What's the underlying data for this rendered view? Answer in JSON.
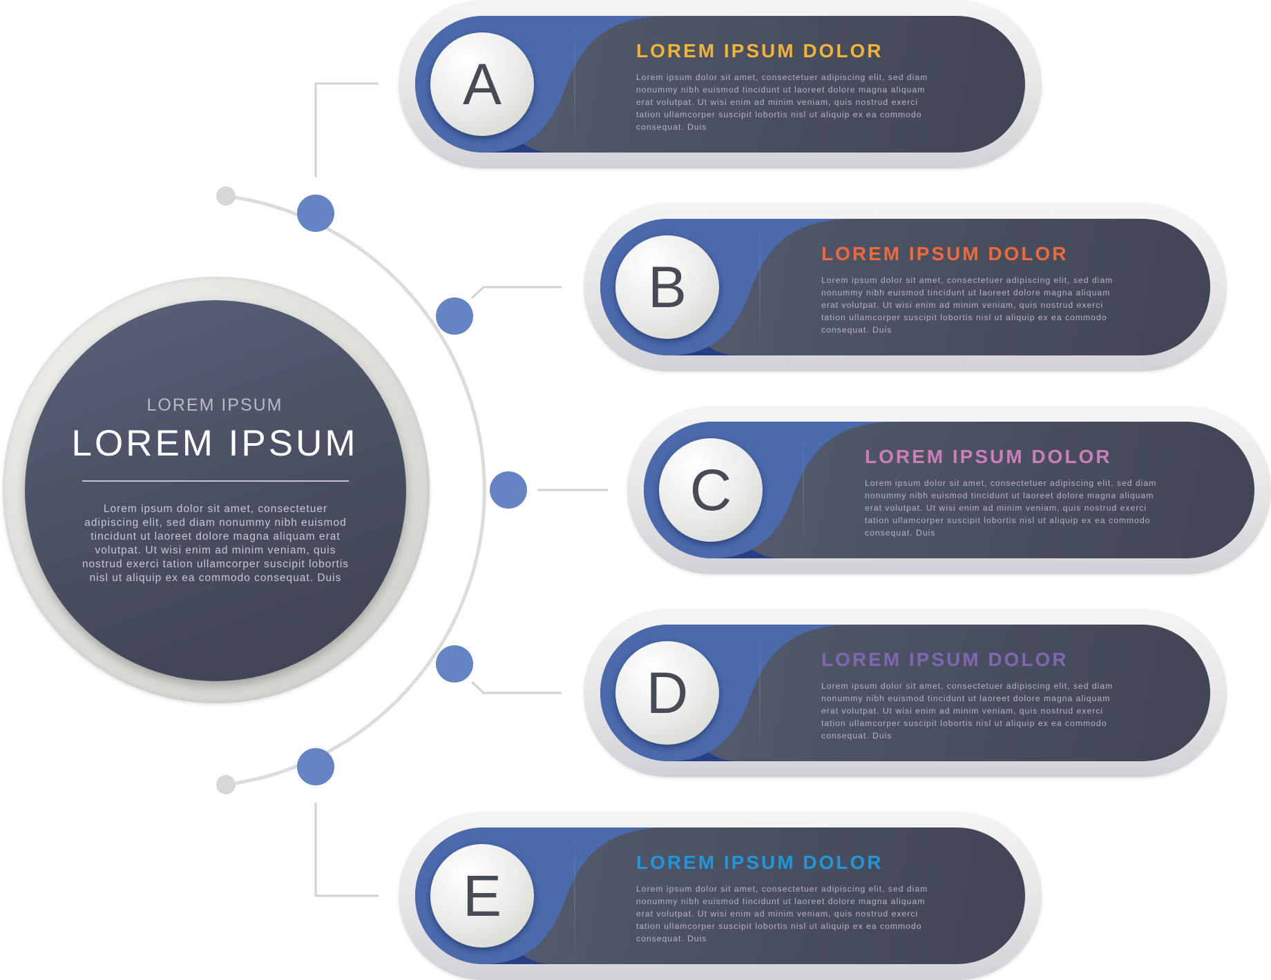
{
  "hub": {
    "subtitle": "LOREM IPSUM",
    "title": "LOREM IPSUM",
    "body": "Lorem ipsum dolor sit amet, consectetuer adipiscing elit, sed diam nonummy nibh euismod tincidunt ut laoreet dolore magna aliquam erat volutpat. Ut wisi enim ad minim veniam, quis nostrud exerci tation ullamcorper suscipit lobortis nisl ut aliquip ex ea commodo consequat. Duis"
  },
  "colors": {
    "dot": "#6584c3",
    "arc": "#dcdcde",
    "connector": "#d2d2d4",
    "accent_blue": "#283e86"
  },
  "items": [
    {
      "letter": "A",
      "title": "LOREM IPSUM DOLOR",
      "title_color": "#f0b43a",
      "body": "Lorem ipsum dolor sit amet, consectetuer adipiscing elit, sed diam nonummy nibh euismod tincidunt ut laoreet dolore magna aliquam erat volutpat. Ut wisi enim ad minim veniam, quis nostrud exerci tation ullamcorper suscipit lobortis nisl ut aliquip ex ea commodo consequat. Duis"
    },
    {
      "letter": "B",
      "title": "LOREM IPSUM DOLOR",
      "title_color": "#ef6a3a",
      "body": "Lorem ipsum dolor sit amet, consectetuer adipiscing elit, sed diam nonummy nibh euismod tincidunt ut laoreet dolore magna aliquam erat volutpat. Ut wisi enim ad minim veniam, quis nostrud exerci tation ullamcorper suscipit lobortis nisl ut aliquip ex ea commodo consequat. Duis"
    },
    {
      "letter": "C",
      "title": "LOREM IPSUM DOLOR",
      "title_color": "#cc7fb6",
      "body": "Lorem ipsum dolor sit amet, consectetuer adipiscing elit, sed diam nonummy nibh euismod tincidunt ut laoreet dolore magna aliquam erat volutpat. Ut wisi enim ad minim veniam, quis nostrud exerci tation ullamcorper suscipit lobortis nisl ut aliquip ex ea commodo consequat. Duis"
    },
    {
      "letter": "D",
      "title": "LOREM IPSUM DOLOR",
      "title_color": "#7f67b0",
      "body": "Lorem ipsum dolor sit amet, consectetuer adipiscing elit, sed diam nonummy nibh euismod tincidunt ut laoreet dolore magna aliquam erat volutpat. Ut wisi enim ad minim veniam, quis nostrud exerci tation ullamcorper suscipit lobortis nisl ut aliquip ex ea commodo consequat. Duis"
    },
    {
      "letter": "E",
      "title": "LOREM IPSUM DOLOR",
      "title_color": "#2196d8",
      "body": "Lorem ipsum dolor sit amet, consectetuer adipiscing elit, sed diam nonummy nibh euismod tincidunt ut laoreet dolore magna aliquam erat volutpat. Ut wisi enim ad minim veniam, quis nostrud exerci tation ullamcorper suscipit lobortis nisl ut aliquip ex ea commodo consequat. Duis"
    }
  ]
}
